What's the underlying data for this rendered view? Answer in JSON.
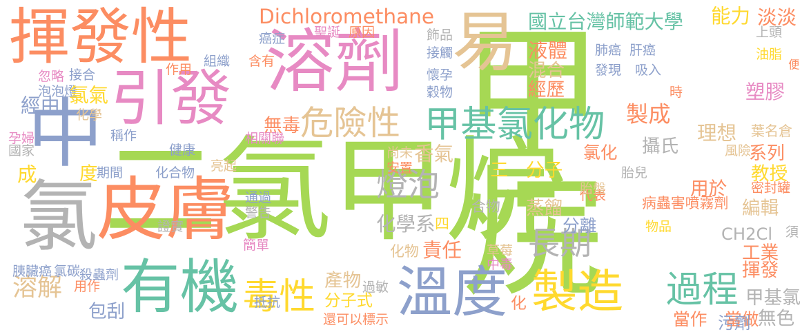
{
  "palette": {
    "green": "#a6d854",
    "orange": "#fc8d62",
    "pink": "#e78ac3",
    "blue": "#8da0cb",
    "tan": "#e5c494",
    "teal": "#66c2a5",
    "yellow": "#ffd92f",
    "gray": "#b3b3b3"
  },
  "words": [
    "二氯甲烷",
    "甲烷",
    "揮發性",
    "溶劑",
    "易",
    "引發",
    "中",
    "皮膚",
    "氯",
    "有機",
    "溫度",
    "製造",
    "毒性",
    "過程",
    "危險性",
    "甲基氯化物",
    "燈泡",
    "長期",
    "Dichloromethane",
    "國立台灣師範大學",
    "能力",
    "淡淡",
    "液體",
    "混合",
    "經歷",
    "製成",
    "無毒",
    "溶解",
    "化學系",
    "香氣",
    "責任",
    "產物",
    "分子式",
    "化物",
    "包刮",
    "三",
    "分子",
    "蒸餾",
    "合物",
    "四",
    "分離",
    "氯化",
    "攝氏",
    "理想",
    "葉名倉",
    "系列",
    "教授",
    "編輯",
    "用於",
    "塑膠",
    "CH2Cl",
    "工業",
    "揮發",
    "甲基氯",
    "無色",
    "當作",
    "當做",
    "污劑",
    "化",
    "肺癌",
    "肝癌",
    "發現",
    "吸入",
    "時",
    "油脂",
    "上頭",
    "便",
    "聖誕",
    "原因",
    "飾品",
    "接觸",
    "懷孕",
    "穀物",
    "癌症",
    "組織",
    "含有",
    "作用",
    "忽略",
    "接合",
    "泡泡燈",
    "氯氣",
    "化學",
    "經由",
    "稱作",
    "健康",
    "相關聯",
    "國家",
    "孕婦",
    "成",
    "度",
    "期間",
    "化合物",
    "亮起",
    "尚未",
    "安置",
    "通過",
    "警告",
    "證實",
    "簡單",
    "胰臟癌",
    "氯碳",
    "殺蟲劑",
    "用作",
    "抵抗",
    "過敏",
    "還可以",
    "標示",
    "草莓",
    "中毒",
    "代表",
    "胎盤",
    "密封罐",
    "病蟲害噴霧劑",
    "物品",
    "胎兒",
    "風險",
    "須"
  ]
}
